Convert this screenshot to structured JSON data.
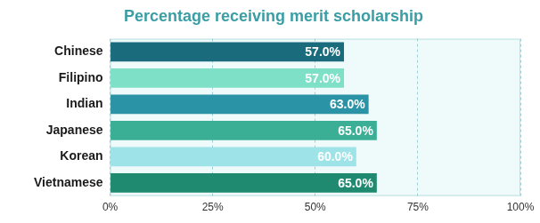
{
  "chart_data": {
    "type": "bar",
    "orientation": "horizontal",
    "title": "Percentage receiving merit scholarship",
    "categories": [
      "Chinese",
      "Filipino",
      "Indian",
      "Japanese",
      "Korean",
      "Vietnamese"
    ],
    "values": [
      57,
      57,
      63,
      65,
      60,
      65
    ],
    "value_labels": [
      "57.0%",
      "57.0%",
      "63.0%",
      "65.0%",
      "60.0%",
      "65.0%"
    ],
    "colors": [
      "#1a6b7c",
      "#7fe0c8",
      "#2b93a6",
      "#3aaf95",
      "#9ee3e8",
      "#1f8a70"
    ],
    "xlim": [
      0,
      100
    ],
    "xticks": [
      {
        "value": 0,
        "label": "0%"
      },
      {
        "value": 25,
        "label": "25%"
      },
      {
        "value": 50,
        "label": "50%"
      },
      {
        "value": 75,
        "label": "75%"
      },
      {
        "value": 100,
        "label": "100%"
      }
    ],
    "grid": true,
    "data_labels": true
  }
}
